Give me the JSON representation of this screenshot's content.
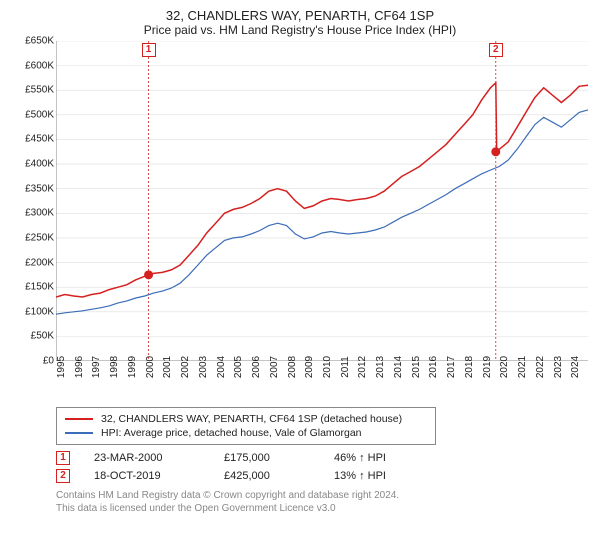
{
  "title": "32, CHANDLERS WAY, PENARTH, CF64 1SP",
  "subtitle": "Price paid vs. HM Land Registry's House Price Index (HPI)",
  "chart": {
    "type": "line",
    "ylim": [
      0,
      650000
    ],
    "ytick_step": 50000,
    "y_ticks": [
      "£0",
      "£50K",
      "£100K",
      "£150K",
      "£200K",
      "£250K",
      "£300K",
      "£350K",
      "£400K",
      "£450K",
      "£500K",
      "£550K",
      "£600K",
      "£650K"
    ],
    "xlim": [
      1995,
      2025
    ],
    "x_ticks": [
      1995,
      1996,
      1997,
      1998,
      1999,
      2000,
      2001,
      2002,
      2003,
      2004,
      2005,
      2006,
      2007,
      2008,
      2009,
      2010,
      2011,
      2012,
      2013,
      2014,
      2015,
      2016,
      2017,
      2018,
      2019,
      2020,
      2021,
      2022,
      2023,
      2024
    ],
    "background_color": "#ffffff",
    "grid_color": "#dddddd",
    "axis_color": "#888888",
    "series": [
      {
        "name": "32, CHANDLERS WAY, PENARTH, CF64 1SP (detached house)",
        "color": "#d62020",
        "line_width": 1.5,
        "points": [
          [
            1995.0,
            130000
          ],
          [
            1995.5,
            135000
          ],
          [
            1996.0,
            132000
          ],
          [
            1996.5,
            130000
          ],
          [
            1997.0,
            135000
          ],
          [
            1997.5,
            138000
          ],
          [
            1998.0,
            145000
          ],
          [
            1998.5,
            150000
          ],
          [
            1999.0,
            155000
          ],
          [
            1999.5,
            165000
          ],
          [
            2000.0,
            172000
          ],
          [
            2000.2,
            175000
          ],
          [
            2000.5,
            178000
          ],
          [
            2001.0,
            180000
          ],
          [
            2001.5,
            185000
          ],
          [
            2002.0,
            195000
          ],
          [
            2002.5,
            215000
          ],
          [
            2003.0,
            235000
          ],
          [
            2003.5,
            260000
          ],
          [
            2004.0,
            280000
          ],
          [
            2004.5,
            300000
          ],
          [
            2005.0,
            308000
          ],
          [
            2005.5,
            312000
          ],
          [
            2006.0,
            320000
          ],
          [
            2006.5,
            330000
          ],
          [
            2007.0,
            345000
          ],
          [
            2007.5,
            350000
          ],
          [
            2008.0,
            345000
          ],
          [
            2008.5,
            325000
          ],
          [
            2009.0,
            310000
          ],
          [
            2009.5,
            315000
          ],
          [
            2010.0,
            325000
          ],
          [
            2010.5,
            330000
          ],
          [
            2011.0,
            328000
          ],
          [
            2011.5,
            325000
          ],
          [
            2012.0,
            328000
          ],
          [
            2012.5,
            330000
          ],
          [
            2013.0,
            335000
          ],
          [
            2013.5,
            345000
          ],
          [
            2014.0,
            360000
          ],
          [
            2014.5,
            375000
          ],
          [
            2015.0,
            385000
          ],
          [
            2015.5,
            395000
          ],
          [
            2016.0,
            410000
          ],
          [
            2016.5,
            425000
          ],
          [
            2017.0,
            440000
          ],
          [
            2017.5,
            460000
          ],
          [
            2018.0,
            480000
          ],
          [
            2018.5,
            500000
          ],
          [
            2019.0,
            530000
          ],
          [
            2019.5,
            555000
          ],
          [
            2019.8,
            565000
          ],
          [
            2019.85,
            425000
          ],
          [
            2020.0,
            430000
          ],
          [
            2020.5,
            445000
          ],
          [
            2021.0,
            475000
          ],
          [
            2021.5,
            505000
          ],
          [
            2022.0,
            535000
          ],
          [
            2022.5,
            555000
          ],
          [
            2023.0,
            540000
          ],
          [
            2023.5,
            525000
          ],
          [
            2024.0,
            540000
          ],
          [
            2024.5,
            558000
          ],
          [
            2025.0,
            560000
          ]
        ]
      },
      {
        "name": "HPI: Average price, detached house, Vale of Glamorgan",
        "color": "#3b6db8",
        "line_width": 1.2,
        "points": [
          [
            1995.0,
            95000
          ],
          [
            1995.5,
            98000
          ],
          [
            1996.0,
            100000
          ],
          [
            1996.5,
            102000
          ],
          [
            1997.0,
            105000
          ],
          [
            1997.5,
            108000
          ],
          [
            1998.0,
            112000
          ],
          [
            1998.5,
            118000
          ],
          [
            1999.0,
            122000
          ],
          [
            1999.5,
            128000
          ],
          [
            2000.0,
            132000
          ],
          [
            2000.5,
            138000
          ],
          [
            2001.0,
            142000
          ],
          [
            2001.5,
            148000
          ],
          [
            2002.0,
            158000
          ],
          [
            2002.5,
            175000
          ],
          [
            2003.0,
            195000
          ],
          [
            2003.5,
            215000
          ],
          [
            2004.0,
            230000
          ],
          [
            2004.5,
            245000
          ],
          [
            2005.0,
            250000
          ],
          [
            2005.5,
            252000
          ],
          [
            2006.0,
            258000
          ],
          [
            2006.5,
            265000
          ],
          [
            2007.0,
            275000
          ],
          [
            2007.5,
            280000
          ],
          [
            2008.0,
            275000
          ],
          [
            2008.5,
            258000
          ],
          [
            2009.0,
            248000
          ],
          [
            2009.5,
            252000
          ],
          [
            2010.0,
            260000
          ],
          [
            2010.5,
            263000
          ],
          [
            2011.0,
            260000
          ],
          [
            2011.5,
            258000
          ],
          [
            2012.0,
            260000
          ],
          [
            2012.5,
            262000
          ],
          [
            2013.0,
            266000
          ],
          [
            2013.5,
            272000
          ],
          [
            2014.0,
            282000
          ],
          [
            2014.5,
            292000
          ],
          [
            2015.0,
            300000
          ],
          [
            2015.5,
            308000
          ],
          [
            2016.0,
            318000
          ],
          [
            2016.5,
            328000
          ],
          [
            2017.0,
            338000
          ],
          [
            2017.5,
            350000
          ],
          [
            2018.0,
            360000
          ],
          [
            2018.5,
            370000
          ],
          [
            2019.0,
            380000
          ],
          [
            2019.5,
            388000
          ],
          [
            2020.0,
            395000
          ],
          [
            2020.5,
            408000
          ],
          [
            2021.0,
            430000
          ],
          [
            2021.5,
            455000
          ],
          [
            2022.0,
            480000
          ],
          [
            2022.5,
            495000
          ],
          [
            2023.0,
            485000
          ],
          [
            2023.5,
            475000
          ],
          [
            2024.0,
            490000
          ],
          [
            2024.5,
            505000
          ],
          [
            2025.0,
            510000
          ]
        ]
      }
    ],
    "sale_markers": [
      {
        "n": "1",
        "year": 2000.22,
        "price": 175000,
        "color": "#d62020"
      },
      {
        "n": "2",
        "year": 2019.8,
        "price": 425000,
        "color": "#d62020"
      }
    ]
  },
  "legend": {
    "border_color": "#888888",
    "items": [
      {
        "label": "32, CHANDLERS WAY, PENARTH, CF64 1SP (detached house)",
        "color": "#d62020"
      },
      {
        "label": "HPI: Average price, detached house, Vale of Glamorgan",
        "color": "#3b6db8"
      }
    ]
  },
  "sales": [
    {
      "n": "1",
      "date": "23-MAR-2000",
      "price": "£175,000",
      "diff": "46% ↑ HPI",
      "color": "#d62020"
    },
    {
      "n": "2",
      "date": "18-OCT-2019",
      "price": "£425,000",
      "diff": "13% ↑ HPI",
      "color": "#d62020"
    }
  ],
  "footer_line1": "Contains HM Land Registry data © Crown copyright and database right 2024.",
  "footer_line2": "This data is licensed under the Open Government Licence v3.0"
}
